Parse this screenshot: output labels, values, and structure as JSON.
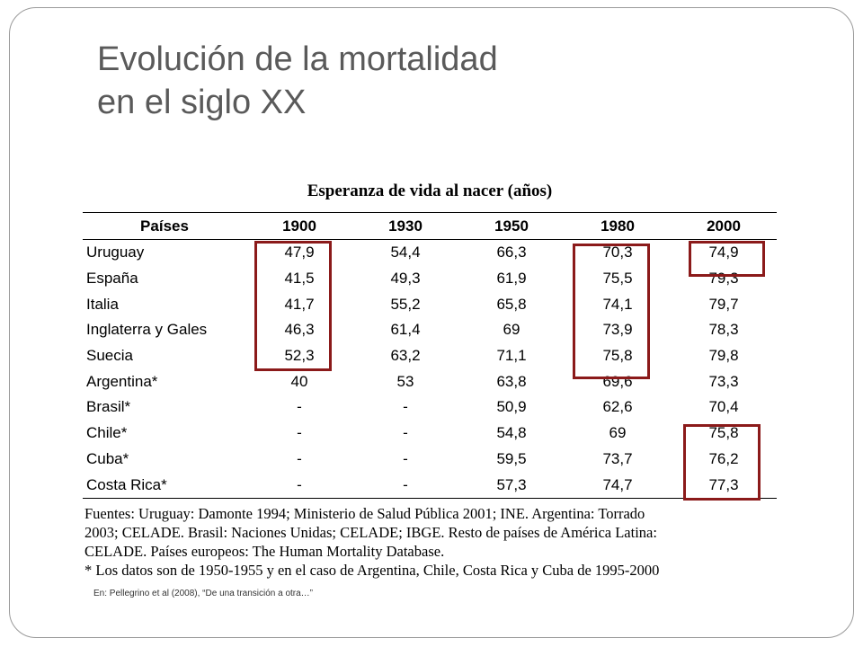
{
  "slide": {
    "title_line1": "Evolución de la mortalidad",
    "title_line2": "en el siglo XX"
  },
  "table": {
    "title": "Esperanza de vida al nacer (años)",
    "headers": [
      "Países",
      "1900",
      "1930",
      "1950",
      "1980",
      "2000"
    ],
    "rows": [
      [
        "Uruguay",
        "47,9",
        "54,4",
        "66,3",
        "70,3",
        "74,9"
      ],
      [
        "España",
        "41,5",
        "49,3",
        "61,9",
        "75,5",
        "79,3"
      ],
      [
        "Italia",
        "41,7",
        "55,2",
        "65,8",
        "74,1",
        "79,7"
      ],
      [
        "Inglaterra y Gales",
        "46,3",
        "61,4",
        "69",
        "73,9",
        "78,3"
      ],
      [
        "Suecia",
        "52,3",
        "63,2",
        "71,1",
        "75,8",
        "79,8"
      ],
      [
        "Argentina*",
        "40",
        "53",
        "63,8",
        "69,6",
        "73,3"
      ],
      [
        "Brasil*",
        "-",
        "-",
        "50,9",
        "62,6",
        "70,4"
      ],
      [
        "Chile*",
        "-",
        "-",
        "54,8",
        "69",
        "75,8"
      ],
      [
        "Cuba*",
        "-",
        "-",
        "59,5",
        "73,7",
        "76,2"
      ],
      [
        "Costa Rica*",
        "-",
        "-",
        "57,3",
        "74,7",
        "77,3"
      ]
    ]
  },
  "highlight_color": "#8b1a1a",
  "sources": {
    "line1": "Fuentes: Uruguay: Damonte 1994; Ministerio de Salud Pública 2001; INE. Argentina: Torrado",
    "line2": "2003; CELADE. Brasil: Naciones Unidas; CELADE; IBGE. Resto de países de América Latina:",
    "line3": "CELADE. Países europeos: The Human Mortality Database.",
    "line4": "* Los datos son de 1950-1955 y en el caso de Argentina, Chile, Costa Rica y Cuba de 1995-2000"
  },
  "citation": "En: Pellegrino et al (2008), “De una transición a otra…”"
}
